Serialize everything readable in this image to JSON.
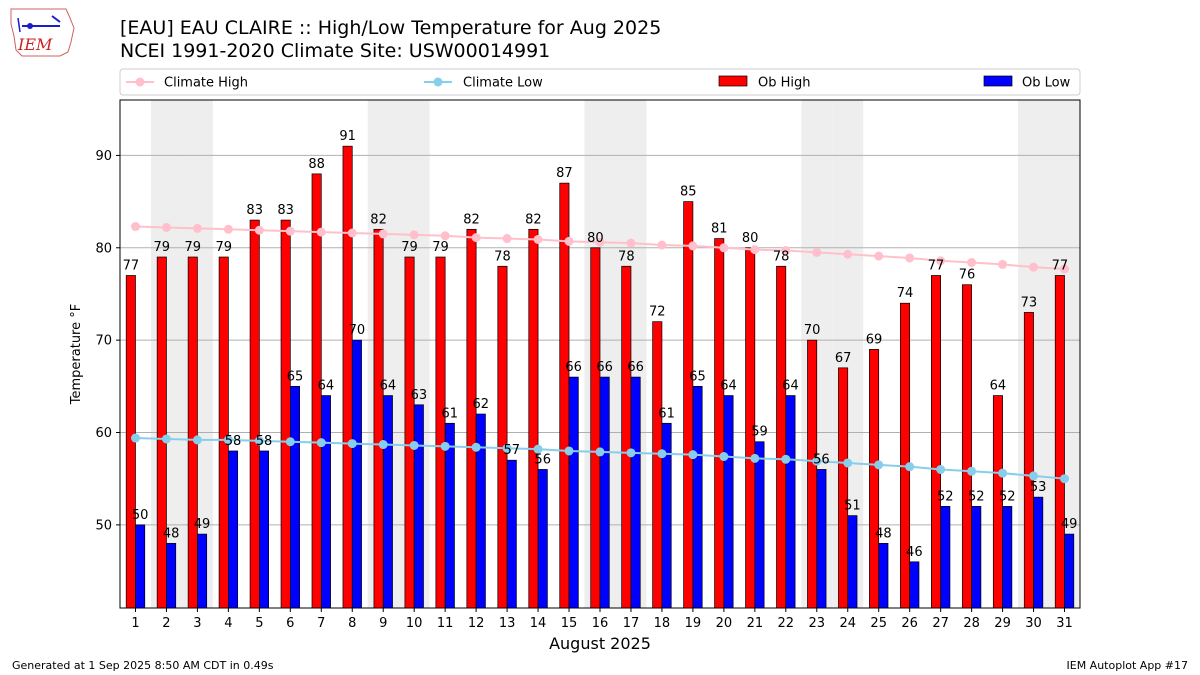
{
  "header": {
    "logo_text": "IEM",
    "title_line1": "[EAU] EAU CLAIRE :: High/Low Temperature for Aug 2025",
    "title_line2": "NCEI 1991-2020 Climate Site: USW00014991"
  },
  "footer": {
    "left": "Generated at 1 Sep 2025 8:50 AM CDT in 0.49s",
    "right": "IEM Autoplot App #17"
  },
  "colors": {
    "ob_high": "#ff0000",
    "ob_low": "#0000ff",
    "climate_high": "#ffc0cb",
    "climate_low": "#87ceeb",
    "weekend_band": "#eeeeee",
    "grid": "#b0b0b0"
  },
  "chart_data": {
    "type": "bar",
    "xlabel": "August 2025",
    "ylabel": "Temperature °F",
    "ylim": [
      41,
      96
    ],
    "yticks": [
      50,
      60,
      70,
      80,
      90
    ],
    "grid": "horizontal",
    "legend_position": "top",
    "categories": [
      "1",
      "2",
      "3",
      "4",
      "5",
      "6",
      "7",
      "8",
      "9",
      "10",
      "11",
      "12",
      "13",
      "14",
      "15",
      "16",
      "17",
      "18",
      "19",
      "20",
      "21",
      "22",
      "23",
      "24",
      "25",
      "26",
      "27",
      "28",
      "29",
      "30",
      "31"
    ],
    "shaded_days": [
      "2",
      "3",
      "9",
      "10",
      "16",
      "17",
      "23",
      "24",
      "30",
      "31"
    ],
    "series": [
      {
        "name": "Ob High",
        "kind": "bar",
        "values": [
          77,
          79,
          79,
          79,
          83,
          83,
          88,
          91,
          82,
          79,
          79,
          82,
          78,
          82,
          87,
          80,
          78,
          72,
          85,
          81,
          80,
          78,
          70,
          67,
          69,
          74,
          77,
          76,
          64,
          73,
          77
        ]
      },
      {
        "name": "Ob Low",
        "kind": "bar",
        "values": [
          50,
          48,
          49,
          58,
          58,
          65,
          64,
          70,
          64,
          63,
          61,
          62,
          57,
          56,
          66,
          66,
          66,
          61,
          65,
          64,
          59,
          64,
          56,
          51,
          48,
          46,
          52,
          52,
          52,
          53,
          49
        ]
      },
      {
        "name": "Climate High",
        "kind": "line",
        "values": [
          82.3,
          82.2,
          82.1,
          82.0,
          81.9,
          81.8,
          81.7,
          81.6,
          81.5,
          81.4,
          81.3,
          81.1,
          81.0,
          80.9,
          80.7,
          80.6,
          80.5,
          80.3,
          80.2,
          80.0,
          79.8,
          79.7,
          79.5,
          79.3,
          79.1,
          78.9,
          78.6,
          78.4,
          78.2,
          77.9,
          77.7
        ]
      },
      {
        "name": "Climate Low",
        "kind": "line",
        "values": [
          59.4,
          59.3,
          59.2,
          59.2,
          59.1,
          59.0,
          58.9,
          58.8,
          58.7,
          58.6,
          58.5,
          58.4,
          58.3,
          58.2,
          58.0,
          57.9,
          57.8,
          57.7,
          57.6,
          57.4,
          57.2,
          57.1,
          56.9,
          56.7,
          56.5,
          56.3,
          56.0,
          55.8,
          55.6,
          55.3,
          55.0
        ]
      }
    ]
  }
}
